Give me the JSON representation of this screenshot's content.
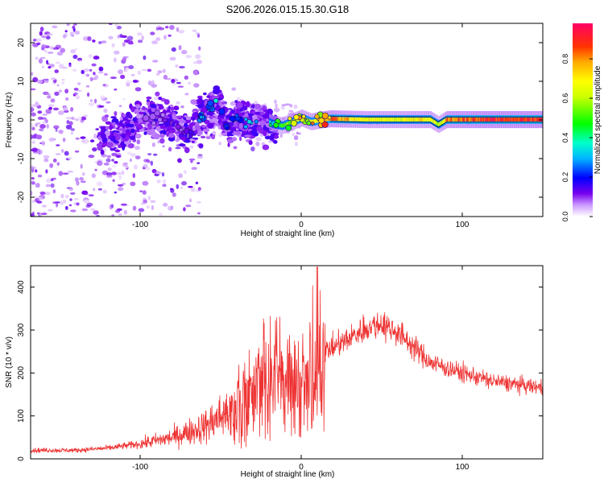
{
  "title": "S206.2026.015.15.30.G18",
  "chart_data": [
    {
      "type": "heatmap",
      "name": "spectrogram",
      "xlabel": "Height of straight line (km)",
      "ylabel": "Frequency (Hz)",
      "xlim": [
        -168,
        150
      ],
      "ylim": [
        -25,
        25
      ],
      "xticks": [
        -100,
        0,
        100
      ],
      "yticks": [
        -20,
        -10,
        0,
        10,
        20
      ],
      "colorbar": {
        "label": "Normalized spectral amplitude",
        "range": [
          0,
          0.98
        ],
        "ticks": [
          0.0,
          0.2,
          0.4,
          0.6,
          0.8
        ]
      },
      "ridge": [
        {
          "x": -115,
          "y": -4.0,
          "v": 0.05
        },
        {
          "x": -100,
          "y": 0.0,
          "v": 0.08
        },
        {
          "x": -90,
          "y": 1.0,
          "v": 0.1
        },
        {
          "x": -80,
          "y": -1.0,
          "v": 0.1
        },
        {
          "x": -70,
          "y": -3.0,
          "v": 0.12
        },
        {
          "x": -62,
          "y": 1.0,
          "v": 0.28
        },
        {
          "x": -55,
          "y": 4.0,
          "v": 0.3
        },
        {
          "x": -52,
          "y": 5.5,
          "v": 0.32
        },
        {
          "x": -46,
          "y": -2.0,
          "v": 0.22
        },
        {
          "x": -38,
          "y": 1.0,
          "v": 0.25
        },
        {
          "x": -32,
          "y": -1.5,
          "v": 0.28
        },
        {
          "x": -26,
          "y": 0.5,
          "v": 0.3
        },
        {
          "x": -18,
          "y": -1.0,
          "v": 0.4
        },
        {
          "x": -12,
          "y": -1.5,
          "v": 0.55
        },
        {
          "x": -6,
          "y": -0.5,
          "v": 0.62
        },
        {
          "x": 0,
          "y": 0.5,
          "v": 0.72
        },
        {
          "x": 6,
          "y": -0.5,
          "v": 0.7
        },
        {
          "x": 12,
          "y": 0.0,
          "v": 0.78
        },
        {
          "x": 18,
          "y": 0.3,
          "v": 0.9
        },
        {
          "x": 40,
          "y": 0.1,
          "v": 0.72
        },
        {
          "x": 60,
          "y": 0.1,
          "v": 0.7
        },
        {
          "x": 80,
          "y": 0.1,
          "v": 0.78
        },
        {
          "x": 85,
          "y": -1.2,
          "v": 0.6
        },
        {
          "x": 90,
          "y": 0.1,
          "v": 0.88
        },
        {
          "x": 110,
          "y": 0.1,
          "v": 0.95
        },
        {
          "x": 150,
          "y": 0.1,
          "v": 0.96
        }
      ]
    },
    {
      "type": "line",
      "name": "snr",
      "xlabel": "Height of straight line (km)",
      "ylabel": "SNR (10 * v/v)",
      "xlim": [
        -168,
        150
      ],
      "ylim": [
        0,
        450
      ],
      "xticks": [
        -100,
        0,
        100
      ],
      "yticks": [
        0,
        100,
        200,
        300,
        400
      ],
      "color": "#ee3333",
      "envelope": {
        "x": [
          -168,
          -140,
          -120,
          -100,
          -80,
          -60,
          -45,
          -30,
          -20,
          -10,
          -5,
          0,
          5,
          10,
          15,
          20,
          30,
          40,
          50,
          60,
          70,
          80,
          100,
          120,
          140,
          150
        ],
        "y": [
          20,
          20,
          25,
          35,
          50,
          75,
          110,
          150,
          180,
          190,
          170,
          160,
          200,
          230,
          250,
          260,
          280,
          305,
          315,
          295,
          260,
          225,
          200,
          180,
          170,
          165
        ]
      },
      "peak": {
        "x": 10,
        "y": 448
      }
    }
  ]
}
